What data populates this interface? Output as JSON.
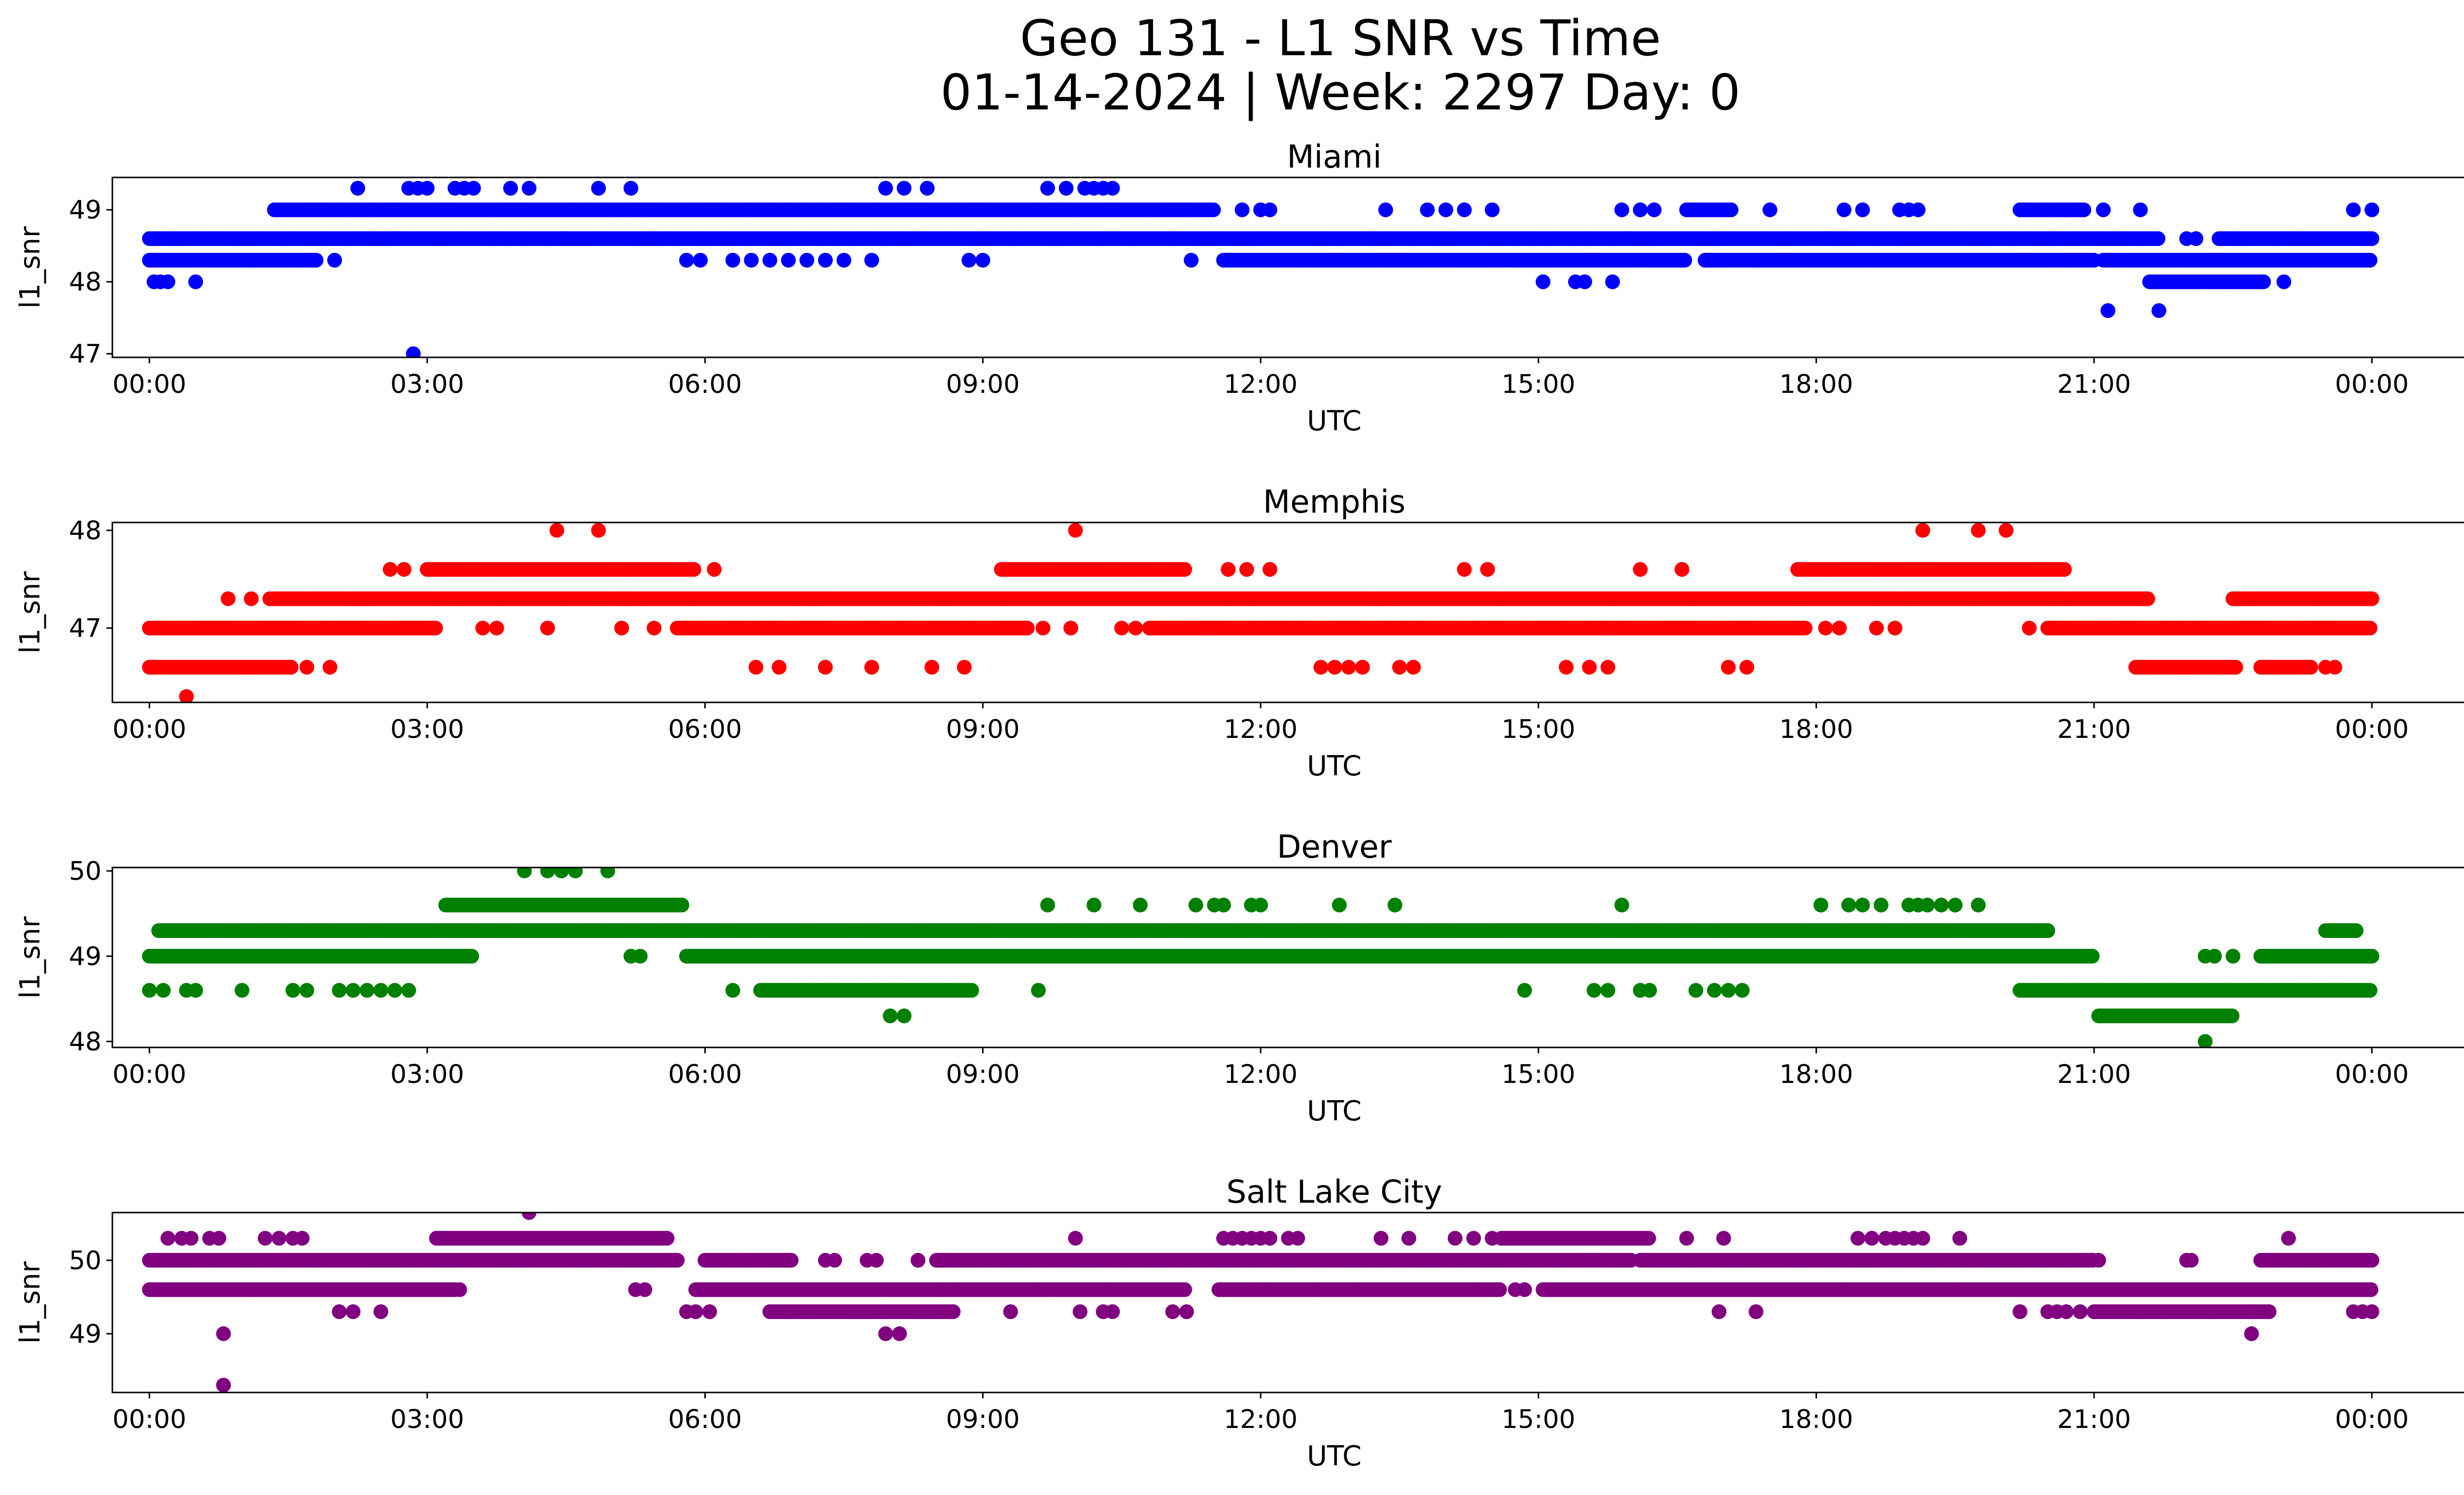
{
  "figure": {
    "title_line1": "Geo 131 - L1 SNR vs Time",
    "title_line2": "01-14-2024 | Week: 2297 Day: 0"
  },
  "chart_data": [
    {
      "type": "scatter",
      "title": "Miami",
      "xlabel": "UTC",
      "ylabel": "l1_snr",
      "color": "#0000ff",
      "xlim_hours": [
        -0.4,
        25.99
      ],
      "ylim": [
        46.95,
        49.45
      ],
      "xticks": [
        "00:00",
        "03:00",
        "06:00",
        "09:00",
        "12:00",
        "15:00",
        "18:00",
        "21:00",
        "00:00"
      ],
      "yticks": [
        47,
        48,
        49
      ],
      "bands": [
        {
          "y": 48.6,
          "segments": [
            [
              0.0,
              21.7
            ],
            [
              22.35,
              24.0
            ]
          ]
        },
        {
          "y": 48.3,
          "segments": [
            [
              0.0,
              1.8
            ],
            [
              11.6,
              16.6
            ],
            [
              16.8,
              21.0
            ],
            [
              21.1,
              24.0
            ]
          ]
        },
        {
          "y": 49.0,
          "segments": [
            [
              1.35,
              11.5
            ],
            [
              16.6,
              17.1
            ],
            [
              20.2,
              20.9
            ]
          ]
        },
        {
          "y": 48.0,
          "segments": [
            [
              21.6,
              22.85
            ]
          ]
        }
      ],
      "points": [
        {
          "y": 48.0,
          "x": [
            0.05,
            0.12,
            0.2,
            0.5,
            15.05,
            15.4,
            15.5,
            15.8,
            23.05
          ]
        },
        {
          "y": 48.3,
          "x": [
            2.0,
            5.8,
            5.95,
            6.3,
            6.5,
            6.7,
            6.9,
            7.1,
            7.3,
            7.5,
            7.8,
            8.85,
            9.0,
            11.25,
            16.8
          ]
        },
        {
          "y": 49.0,
          "x": [
            11.8,
            12.0,
            12.1,
            13.35,
            13.8,
            14.0,
            14.2,
            14.5,
            15.9,
            16.1,
            16.25,
            17.5,
            18.3,
            18.5,
            18.9,
            19.0,
            19.1,
            21.1,
            21.5,
            23.8,
            24.0
          ]
        },
        {
          "y": 49.3,
          "x": [
            2.25,
            2.8,
            2.9,
            3.0,
            3.3,
            3.4,
            3.5,
            3.9,
            4.1,
            4.85,
            5.2,
            7.95,
            8.15,
            8.4,
            9.7,
            9.9,
            10.1,
            10.2,
            10.3,
            10.4
          ]
        },
        {
          "y": 48.6,
          "x": [
            22.0,
            22.1
          ]
        },
        {
          "y": 47.6,
          "x": [
            21.15,
            21.7
          ]
        },
        {
          "y": 47.0,
          "x": [
            2.85
          ]
        }
      ]
    },
    {
      "type": "scatter",
      "title": "Memphis",
      "xlabel": "UTC",
      "ylabel": "l1_snr",
      "color": "#ff0000",
      "xlim_hours": [
        -0.4,
        25.99
      ],
      "ylim": [
        46.24,
        48.08
      ],
      "xticks": [
        "00:00",
        "03:00",
        "06:00",
        "09:00",
        "12:00",
        "15:00",
        "18:00",
        "21:00",
        "00:00"
      ],
      "yticks": [
        47,
        48
      ],
      "bands": [
        {
          "y": 47.3,
          "segments": [
            [
              1.3,
              21.6
            ],
            [
              22.5,
              24.0
            ]
          ]
        },
        {
          "y": 47.0,
          "segments": [
            [
              0.0,
              3.1
            ],
            [
              5.7,
              9.5
            ],
            [
              10.8,
              17.9
            ],
            [
              20.5,
              24.0
            ]
          ]
        },
        {
          "y": 46.6,
          "segments": [
            [
              0.0,
              1.55
            ],
            [
              21.45,
              22.55
            ],
            [
              22.8,
              23.35
            ]
          ]
        },
        {
          "y": 47.6,
          "segments": [
            [
              3.0,
              5.9
            ],
            [
              9.2,
              11.2
            ],
            [
              17.8,
              20.7
            ]
          ]
        }
      ],
      "points": [
        {
          "y": 46.3,
          "x": [
            0.4
          ]
        },
        {
          "y": 46.6,
          "x": [
            1.7,
            1.95,
            6.55,
            6.8,
            7.3,
            7.8,
            8.45,
            8.8,
            12.65,
            12.8,
            12.95,
            13.1,
            13.5,
            13.65,
            15.3,
            15.55,
            15.75,
            17.05,
            17.25,
            23.5,
            23.6
          ]
        },
        {
          "y": 47.0,
          "x": [
            3.6,
            3.75,
            4.3,
            5.1,
            5.45,
            9.65,
            9.95,
            10.5,
            10.65,
            18.1,
            18.25,
            18.65,
            18.85,
            20.3
          ]
        },
        {
          "y": 47.3,
          "x": [
            0.85,
            1.1
          ]
        },
        {
          "y": 47.6,
          "x": [
            2.6,
            2.75,
            6.1,
            11.65,
            11.85,
            12.1,
            14.2,
            14.45,
            16.1,
            16.55
          ]
        },
        {
          "y": 48.0,
          "x": [
            4.4,
            4.85,
            10.0,
            19.15,
            19.75,
            20.05
          ]
        }
      ]
    },
    {
      "type": "scatter",
      "title": "Denver",
      "xlabel": "UTC",
      "ylabel": "l1_snr",
      "color": "#008000",
      "xlim_hours": [
        -0.4,
        25.99
      ],
      "ylim": [
        47.93,
        50.04
      ],
      "xticks": [
        "00:00",
        "03:00",
        "06:00",
        "09:00",
        "12:00",
        "15:00",
        "18:00",
        "21:00",
        "00:00"
      ],
      "yticks": [
        48,
        49,
        50
      ],
      "bands": [
        {
          "y": 49.3,
          "segments": [
            [
              0.1,
              20.5
            ],
            [
              23.5,
              23.85
            ]
          ]
        },
        {
          "y": 49.0,
          "segments": [
            [
              0.0,
              3.5
            ],
            [
              5.8,
              21.0
            ],
            [
              22.8,
              24.0
            ]
          ]
        },
        {
          "y": 49.6,
          "segments": [
            [
              3.2,
              5.75
            ]
          ]
        },
        {
          "y": 48.6,
          "segments": [
            [
              6.6,
              8.9
            ],
            [
              20.2,
              24.0
            ]
          ]
        },
        {
          "y": 48.3,
          "segments": [
            [
              21.05,
              22.5
            ]
          ]
        }
      ],
      "points": [
        {
          "y": 48.0,
          "x": [
            22.2
          ]
        },
        {
          "y": 48.3,
          "x": [
            8.0,
            8.15
          ]
        },
        {
          "y": 48.6,
          "x": [
            0.0,
            0.15,
            0.4,
            0.5,
            1.0,
            1.55,
            1.7,
            2.05,
            2.2,
            2.35,
            2.5,
            2.65,
            2.8,
            6.3,
            9.6,
            14.85,
            15.6,
            15.75,
            16.1,
            16.2,
            16.7,
            16.9,
            17.05,
            17.2
          ]
        },
        {
          "y": 49.0,
          "x": [
            5.2,
            5.3,
            22.2,
            22.3,
            22.5
          ]
        },
        {
          "y": 49.3,
          "x": [
            7.6
          ]
        },
        {
          "y": 49.6,
          "x": [
            9.7,
            10.2,
            10.7,
            11.3,
            11.5,
            11.6,
            11.9,
            12.0,
            12.85,
            13.45,
            15.9,
            18.05,
            18.35,
            18.5,
            18.7,
            19.0,
            19.1,
            19.2,
            19.35,
            19.5,
            19.75
          ]
        },
        {
          "y": 50.0,
          "x": [
            4.05,
            4.3,
            4.45,
            4.6,
            4.95
          ]
        }
      ]
    },
    {
      "type": "scatter",
      "title": "Salt Lake City",
      "xlabel": "UTC",
      "ylabel": "l1_snr",
      "color": "#800080",
      "xlim_hours": [
        -0.4,
        25.99
      ],
      "ylim": [
        48.2,
        50.65
      ],
      "xticks": [
        "00:00",
        "03:00",
        "06:00",
        "09:00",
        "12:00",
        "15:00",
        "18:00",
        "21:00",
        "00:00"
      ],
      "yticks": [
        49,
        50
      ],
      "bands": [
        {
          "y": 49.6,
          "segments": [
            [
              0.0,
              3.3
            ],
            [
              5.9,
              11.2
            ],
            [
              11.55,
              14.6
            ],
            [
              15.05,
              24.0
            ]
          ]
        },
        {
          "y": 50.0,
          "segments": [
            [
              0.0,
              5.7
            ],
            [
              6.0,
              6.95
            ],
            [
              8.5,
              16.0
            ],
            [
              16.1,
              21.0
            ],
            [
              22.8,
              24.0
            ]
          ]
        },
        {
          "y": 50.3,
          "segments": [
            [
              3.1,
              5.6
            ],
            [
              14.6,
              16.2
            ]
          ]
        },
        {
          "y": 49.3,
          "segments": [
            [
              6.7,
              8.7
            ],
            [
              21.0,
              22.9
            ]
          ]
        }
      ],
      "points": [
        {
          "y": 48.3,
          "x": [
            0.8
          ]
        },
        {
          "y": 49.0,
          "x": [
            0.8,
            7.95,
            8.1,
            22.7
          ]
        },
        {
          "y": 49.3,
          "x": [
            2.05,
            2.2,
            2.5,
            5.8,
            5.9,
            6.05,
            9.3,
            10.05,
            10.3,
            10.4,
            11.05,
            11.2,
            16.95,
            17.35,
            20.2,
            20.5,
            20.6,
            20.7,
            20.85,
            23.8,
            23.9,
            24.0
          ]
        },
        {
          "y": 49.6,
          "x": [
            3.35,
            5.25,
            5.35,
            14.75,
            14.85
          ]
        },
        {
          "y": 50.0,
          "x": [
            7.3,
            7.4,
            7.75,
            7.85,
            8.3,
            21.05,
            22.0,
            22.05
          ]
        },
        {
          "y": 50.3,
          "x": [
            0.2,
            0.35,
            0.45,
            0.65,
            0.75,
            1.25,
            1.4,
            1.55,
            1.65,
            10.0,
            11.6,
            11.7,
            11.8,
            11.9,
            12.0,
            12.1,
            12.3,
            12.4,
            13.3,
            13.6,
            14.1,
            14.3,
            14.5,
            16.6,
            17.0,
            18.45,
            18.6,
            18.75,
            18.85,
            18.95,
            19.05,
            19.15,
            19.55,
            23.1
          ]
        },
        {
          "y": 50.65,
          "x": [
            4.1
          ]
        }
      ]
    }
  ]
}
